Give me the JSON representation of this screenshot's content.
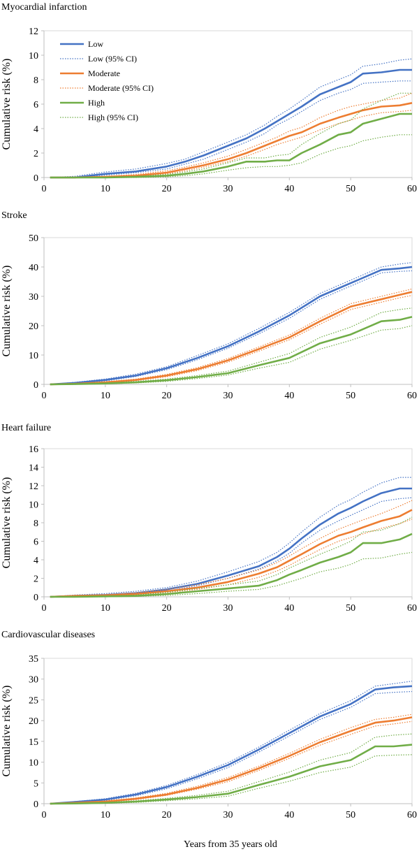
{
  "figure": {
    "xlabel": "Years from 35 years old"
  },
  "colors": {
    "Low": "#4472c4",
    "Moderate": "#ed7d31",
    "High": "#70ad47"
  },
  "legend": {
    "placement": "top-left of first panel",
    "entries": [
      "Low",
      "Low (95% CI)",
      "Moderate",
      "Moderate (95% CI)",
      "High",
      "High (95% CI)"
    ]
  },
  "chart_data": [
    {
      "type": "line",
      "title": "Myocardial infarction",
      "ylabel": "Cumulative risk (%)",
      "xlim": [
        0,
        60
      ],
      "ylim": [
        0,
        12
      ],
      "xticks": [
        0,
        10,
        20,
        30,
        40,
        50,
        60
      ],
      "yticks": [
        0,
        2,
        4,
        6,
        8,
        10,
        12
      ],
      "x": [
        1,
        5,
        10,
        15,
        20,
        23,
        26,
        30,
        33,
        36,
        38,
        40,
        42,
        45,
        48,
        50,
        52,
        55,
        58,
        60
      ],
      "series": [
        {
          "name": "Low",
          "values": [
            0,
            0,
            0.3,
            0.5,
            0.9,
            1.3,
            1.8,
            2.6,
            3.2,
            4.0,
            4.6,
            5.2,
            5.8,
            6.8,
            7.4,
            7.8,
            8.5,
            8.6,
            8.8,
            8.8
          ]
        },
        {
          "name": "Low (95% CI) upper",
          "values": [
            0,
            0.1,
            0.45,
            0.7,
            1.15,
            1.5,
            2.1,
            2.9,
            3.5,
            4.3,
            5.0,
            5.6,
            6.3,
            7.4,
            8.0,
            8.4,
            9.1,
            9.3,
            9.6,
            9.7
          ]
        },
        {
          "name": "Low (95% CI) lower",
          "values": [
            0,
            0,
            0.2,
            0.4,
            0.7,
            1.1,
            1.5,
            2.3,
            2.9,
            3.6,
            4.3,
            4.8,
            5.4,
            6.3,
            6.9,
            7.2,
            7.7,
            7.8,
            7.9,
            7.9
          ]
        },
        {
          "name": "Moderate",
          "values": [
            0,
            0,
            0.05,
            0.15,
            0.4,
            0.7,
            1.0,
            1.5,
            2.0,
            2.6,
            3.0,
            3.4,
            3.7,
            4.4,
            4.9,
            5.2,
            5.5,
            5.8,
            5.9,
            6.1
          ]
        },
        {
          "name": "Moderate (95% CI) upper",
          "values": [
            0,
            0,
            0.1,
            0.25,
            0.55,
            0.85,
            1.2,
            1.75,
            2.3,
            2.9,
            3.3,
            3.8,
            4.1,
            4.9,
            5.5,
            5.8,
            6.0,
            6.3,
            6.5,
            6.9
          ]
        },
        {
          "name": "Moderate (95% CI) lower",
          "values": [
            0,
            0,
            0,
            0.1,
            0.3,
            0.55,
            0.85,
            1.3,
            1.75,
            2.3,
            2.7,
            3.0,
            3.3,
            3.9,
            4.4,
            4.7,
            5.0,
            5.3,
            5.4,
            5.5
          ]
        },
        {
          "name": "High",
          "values": [
            0,
            0,
            0,
            0.05,
            0.15,
            0.3,
            0.5,
            0.9,
            1.3,
            1.3,
            1.4,
            1.4,
            2.0,
            2.7,
            3.5,
            3.7,
            4.4,
            4.8,
            5.2,
            5.2
          ]
        },
        {
          "name": "High (95% CI) upper",
          "values": [
            0,
            0,
            0,
            0.1,
            0.25,
            0.45,
            0.7,
            1.2,
            1.6,
            1.6,
            1.8,
            1.9,
            2.7,
            3.6,
            4.4,
            4.7,
            5.6,
            6.3,
            6.9,
            6.9
          ]
        },
        {
          "name": "High (95% CI) lower",
          "values": [
            0,
            0,
            0,
            0,
            0.05,
            0.15,
            0.3,
            0.6,
            0.8,
            0.9,
            0.9,
            1.0,
            1.2,
            1.9,
            2.4,
            2.6,
            3.0,
            3.3,
            3.5,
            3.5
          ]
        }
      ]
    },
    {
      "type": "line",
      "title": "Stroke",
      "ylabel": "Cumulative risk (%)",
      "xlim": [
        0,
        60
      ],
      "ylim": [
        0,
        50
      ],
      "xticks": [
        0,
        10,
        20,
        30,
        40,
        50,
        60
      ],
      "yticks": [
        0,
        10,
        20,
        30,
        40,
        50
      ],
      "x": [
        1,
        5,
        10,
        15,
        20,
        25,
        30,
        35,
        40,
        45,
        50,
        55,
        58,
        60
      ],
      "series": [
        {
          "name": "Low",
          "values": [
            0,
            0.5,
            1.5,
            3.0,
            5.5,
            9.0,
            13.0,
            18.0,
            23.5,
            30.0,
            34.5,
            39.0,
            39.5,
            40.0
          ]
        },
        {
          "name": "Low (95% CI) upper",
          "values": [
            0,
            0.7,
            1.8,
            3.5,
            6.0,
            9.8,
            13.8,
            19.0,
            24.5,
            31.0,
            35.5,
            40.0,
            41.0,
            41.5
          ]
        },
        {
          "name": "Low (95% CI) lower",
          "values": [
            0,
            0.4,
            1.2,
            2.7,
            5.0,
            8.4,
            12.3,
            17.2,
            22.5,
            29.0,
            33.5,
            38.0,
            38.5,
            38.7
          ]
        },
        {
          "name": "Moderate",
          "values": [
            0,
            0.2,
            0.7,
            1.5,
            3.0,
            5.2,
            8.2,
            12.0,
            16.0,
            21.5,
            26.5,
            29.0,
            30.5,
            31.5
          ]
        },
        {
          "name": "Moderate (95% CI) upper",
          "values": [
            0,
            0.3,
            0.9,
            1.8,
            3.4,
            5.7,
            8.8,
            12.7,
            16.8,
            22.5,
            27.5,
            30.0,
            31.5,
            32.5
          ]
        },
        {
          "name": "Moderate (95% CI) lower",
          "values": [
            0,
            0.1,
            0.5,
            1.3,
            2.6,
            4.7,
            7.6,
            11.3,
            15.2,
            20.5,
            25.5,
            28.0,
            29.5,
            30.3
          ]
        },
        {
          "name": "High",
          "values": [
            0,
            0.1,
            0.3,
            0.7,
            1.4,
            2.5,
            3.8,
            6.5,
            9.0,
            14.0,
            17.0,
            21.5,
            22.0,
            23.0
          ]
        },
        {
          "name": "High (95% CI) upper",
          "values": [
            0,
            0.2,
            0.5,
            1.0,
            1.8,
            3.0,
            4.5,
            7.5,
            10.5,
            16.0,
            19.5,
            24.5,
            25.5,
            26.0
          ]
        },
        {
          "name": "High (95% CI) lower",
          "values": [
            0,
            0,
            0.2,
            0.5,
            1.0,
            2.0,
            3.2,
            5.5,
            7.5,
            12.0,
            15.0,
            18.5,
            19.0,
            20.0
          ]
        }
      ]
    },
    {
      "type": "line",
      "title": "Heart failure",
      "ylabel": "Cumulative risk (%)",
      "xlim": [
        0,
        60
      ],
      "ylim": [
        0,
        16
      ],
      "xticks": [
        0,
        10,
        20,
        30,
        40,
        50,
        60
      ],
      "yticks": [
        0,
        2,
        4,
        6,
        8,
        10,
        12,
        14,
        16
      ],
      "x": [
        1,
        5,
        10,
        15,
        20,
        25,
        30,
        35,
        38,
        40,
        42,
        45,
        48,
        50,
        52,
        55,
        58,
        60
      ],
      "series": [
        {
          "name": "Low",
          "values": [
            0,
            0.1,
            0.2,
            0.4,
            0.8,
            1.4,
            2.3,
            3.3,
            4.3,
            5.2,
            6.3,
            7.8,
            9.0,
            9.6,
            10.3,
            11.2,
            11.7,
            11.7
          ]
        },
        {
          "name": "Low (95% CI) upper",
          "values": [
            0,
            0.2,
            0.35,
            0.6,
            1.0,
            1.7,
            2.7,
            3.8,
            4.8,
            5.8,
            7.0,
            8.6,
            9.9,
            10.5,
            11.3,
            12.3,
            12.9,
            12.9
          ]
        },
        {
          "name": "Low (95% CI) lower",
          "values": [
            0,
            0.05,
            0.1,
            0.3,
            0.6,
            1.2,
            2.0,
            3.0,
            3.9,
            4.7,
            5.8,
            7.2,
            8.2,
            8.8,
            9.4,
            10.3,
            10.6,
            10.7
          ]
        },
        {
          "name": "Moderate",
          "values": [
            0,
            0.1,
            0.15,
            0.3,
            0.6,
            1.0,
            1.6,
            2.5,
            3.2,
            3.9,
            4.6,
            5.7,
            6.6,
            7.0,
            7.5,
            8.2,
            8.7,
            9.4
          ]
        },
        {
          "name": "Moderate (95% CI) upper",
          "values": [
            0,
            0.15,
            0.25,
            0.45,
            0.8,
            1.3,
            2.0,
            2.9,
            3.7,
            4.4,
            5.2,
            6.3,
            7.3,
            7.8,
            8.3,
            9.0,
            9.8,
            10.4
          ]
        },
        {
          "name": "Moderate (95% CI) lower",
          "values": [
            0,
            0.05,
            0.1,
            0.2,
            0.45,
            0.8,
            1.3,
            2.1,
            2.8,
            3.4,
            4.1,
            5.1,
            6.0,
            6.4,
            6.8,
            7.4,
            7.9,
            8.4
          ]
        },
        {
          "name": "High",
          "values": [
            0,
            0,
            0.05,
            0.1,
            0.3,
            0.6,
            0.9,
            1.2,
            1.8,
            2.4,
            2.9,
            3.7,
            4.3,
            4.8,
            5.8,
            5.8,
            6.2,
            6.8
          ]
        },
        {
          "name": "High (95% CI) upper",
          "values": [
            0,
            0.05,
            0.1,
            0.2,
            0.5,
            0.9,
            1.3,
            1.7,
            2.4,
            3.1,
            3.7,
            4.6,
            5.4,
            6.0,
            7.0,
            7.2,
            7.9,
            8.6
          ]
        },
        {
          "name": "High (95% CI) lower",
          "values": [
            0,
            0,
            0,
            0.05,
            0.15,
            0.35,
            0.6,
            0.8,
            1.2,
            1.6,
            2.0,
            2.7,
            3.1,
            3.5,
            4.1,
            4.2,
            4.6,
            4.8
          ]
        }
      ]
    },
    {
      "type": "line",
      "title": "Cardiovascular diseases",
      "ylabel": "Cumulative risk (%)",
      "xlim": [
        0,
        60
      ],
      "ylim": [
        0,
        35
      ],
      "xticks": [
        0,
        10,
        20,
        30,
        40,
        50,
        60
      ],
      "yticks": [
        0,
        5,
        10,
        15,
        20,
        25,
        30,
        35
      ],
      "x": [
        1,
        5,
        10,
        15,
        20,
        25,
        30,
        35,
        40,
        45,
        50,
        54,
        57,
        60
      ],
      "series": [
        {
          "name": "Low",
          "values": [
            0,
            0.4,
            1.0,
            2.2,
            4.0,
            6.5,
            9.3,
            13.0,
            17.0,
            21.0,
            24.0,
            27.5,
            28.0,
            28.3
          ]
        },
        {
          "name": "Low (95% CI) upper",
          "values": [
            0,
            0.5,
            1.2,
            2.5,
            4.4,
            7.0,
            9.9,
            13.6,
            17.7,
            21.7,
            24.8,
            28.3,
            28.9,
            29.5
          ]
        },
        {
          "name": "Low (95% CI) lower",
          "values": [
            0,
            0.3,
            0.8,
            1.9,
            3.6,
            6.0,
            8.7,
            12.4,
            16.3,
            20.3,
            23.2,
            26.5,
            26.8,
            27.0
          ]
        },
        {
          "name": "Moderate",
          "values": [
            0,
            0.2,
            0.5,
            1.2,
            2.2,
            3.8,
            5.8,
            8.5,
            11.5,
            14.8,
            17.5,
            19.5,
            20.0,
            20.8
          ]
        },
        {
          "name": "Moderate (95% CI) upper",
          "values": [
            0,
            0.3,
            0.65,
            1.4,
            2.5,
            4.2,
            6.3,
            9.0,
            12.1,
            15.5,
            18.3,
            20.3,
            20.8,
            21.5
          ]
        },
        {
          "name": "Moderate (95% CI) lower",
          "values": [
            0,
            0.1,
            0.4,
            1.0,
            2.0,
            3.5,
            5.3,
            8.0,
            10.9,
            14.1,
            16.7,
            18.7,
            19.2,
            19.8
          ]
        },
        {
          "name": "High",
          "values": [
            0,
            0.05,
            0.2,
            0.5,
            1.0,
            1.6,
            2.4,
            4.5,
            6.5,
            9.0,
            10.5,
            13.8,
            13.8,
            14.2
          ]
        },
        {
          "name": "High (95% CI) upper",
          "values": [
            0,
            0.1,
            0.3,
            0.7,
            1.3,
            2.0,
            3.0,
            5.3,
            7.6,
            10.5,
            12.3,
            16.0,
            16.5,
            16.8
          ]
        },
        {
          "name": "High (95% CI) lower",
          "values": [
            0,
            0,
            0.1,
            0.3,
            0.7,
            1.2,
            1.8,
            3.7,
            5.4,
            7.5,
            8.8,
            11.5,
            11.7,
            11.8
          ]
        }
      ]
    }
  ]
}
